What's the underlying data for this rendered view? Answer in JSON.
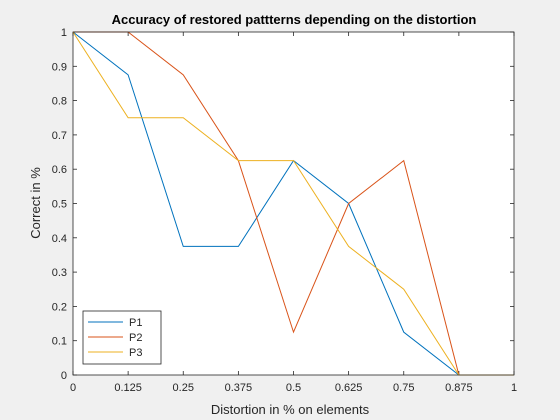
{
  "chart_data": {
    "type": "line",
    "title": "Accuracy of restored pattterns depending on the distortion",
    "xlabel": "Distortion in % on elements",
    "ylabel": "Correct in %",
    "xlim": [
      0,
      1
    ],
    "ylim": [
      0,
      1
    ],
    "xticks": [
      0,
      0.125,
      0.25,
      0.375,
      0.5,
      0.625,
      0.75,
      0.875,
      1
    ],
    "xtick_labels": [
      "0",
      "0.125",
      "0.25",
      "0.375",
      "0.5",
      "0.625",
      "0.75",
      "0.875",
      "1"
    ],
    "yticks": [
      0,
      0.1,
      0.2,
      0.3,
      0.4,
      0.5,
      0.6,
      0.7,
      0.8,
      0.9,
      1
    ],
    "ytick_labels": [
      "0",
      "0.1",
      "0.2",
      "0.3",
      "0.4",
      "0.5",
      "0.6",
      "0.7",
      "0.8",
      "0.9",
      "1"
    ],
    "grid": false,
    "legend_position": "bottom-left",
    "x": [
      0,
      0.125,
      0.25,
      0.375,
      0.5,
      0.625,
      0.75,
      0.875,
      1
    ],
    "series": [
      {
        "name": "P1",
        "color": "#0072bd",
        "values": [
          1,
          0.875,
          0.375,
          0.375,
          0.625,
          0.5,
          0.125,
          0,
          0
        ]
      },
      {
        "name": "P2",
        "color": "#d95319",
        "values": [
          1,
          1,
          0.875,
          0.625,
          0.125,
          0.5,
          0.625,
          0,
          0
        ]
      },
      {
        "name": "P3",
        "color": "#edb120",
        "values": [
          1,
          0.75,
          0.75,
          0.625,
          0.625,
          0.375,
          0.25,
          0,
          0
        ]
      }
    ]
  }
}
